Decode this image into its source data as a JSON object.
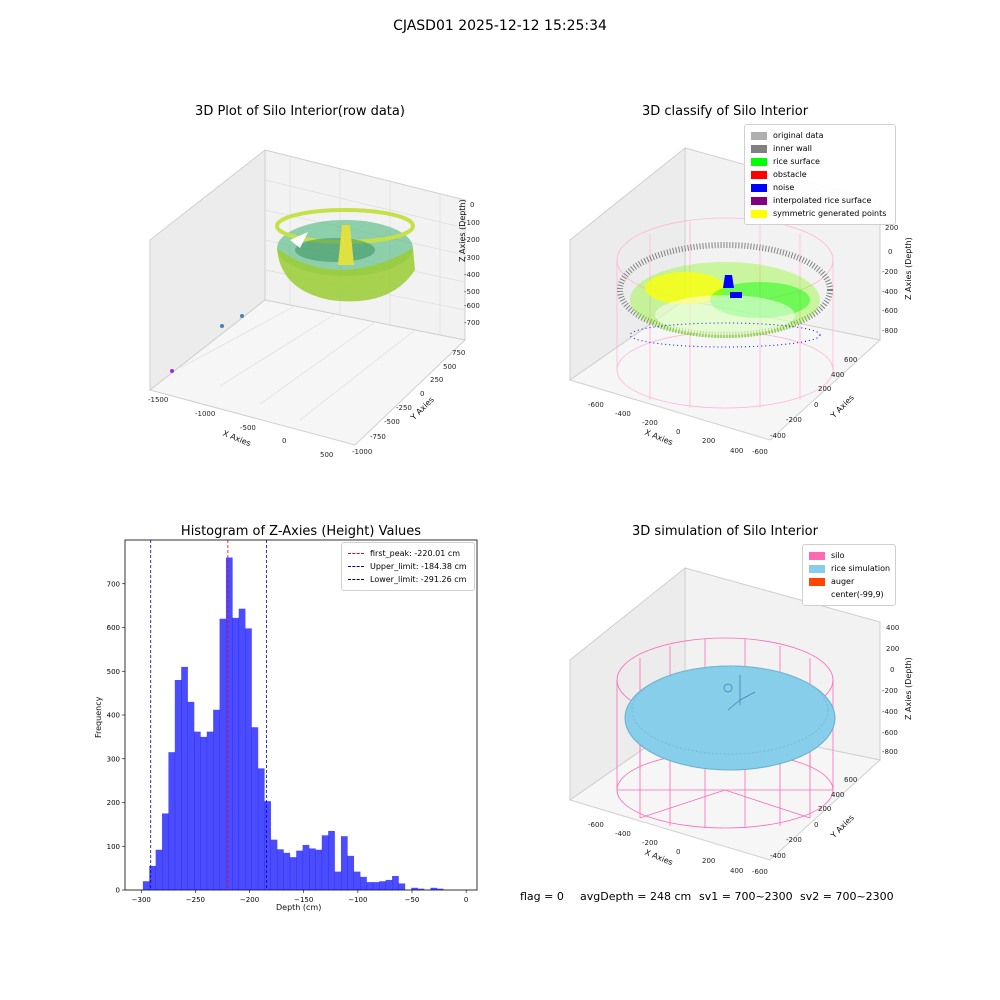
{
  "suptitle": "CJASD01 2025-12-12 15:25:34",
  "panels": {
    "raw": {
      "title": "3D Plot of Silo Interior(row data)",
      "xlabel": "X Axies",
      "ylabel": "Y Axies",
      "zlabel": "Z Axies (Depth)",
      "xticks": [
        "-1500",
        "-1000",
        "-500",
        "0",
        "500"
      ],
      "yticks": [
        "750",
        "500",
        "250",
        "0",
        "-250",
        "-500",
        "-750",
        "-1000"
      ],
      "zticks": [
        "0",
        "-100",
        "-200",
        "-300",
        "-400",
        "-500",
        "-600",
        "-700"
      ]
    },
    "classify": {
      "title": "3D classify of Silo Interior",
      "xlabel": "X Axies",
      "ylabel": "Y Axies",
      "zlabel": "Z Axies (Depth)",
      "xticks": [
        "-600",
        "-400",
        "-200",
        "0",
        "200",
        "400"
      ],
      "yticks": [
        "600",
        "400",
        "200",
        "0",
        "-200",
        "-400",
        "-600"
      ],
      "zticks": [
        "200",
        "0",
        "-200",
        "-400",
        "-600",
        "-800"
      ],
      "legend": [
        {
          "label": "original data",
          "color": "#b0b0b0"
        },
        {
          "label": "inner wall",
          "color": "#808080"
        },
        {
          "label": "rice surface",
          "color": "#00ff00"
        },
        {
          "label": "obstacle",
          "color": "#ff0000"
        },
        {
          "label": "noise",
          "color": "#0000ff"
        },
        {
          "label": "interpolated rice surface",
          "color": "#800080"
        },
        {
          "label": "symmetric generated points",
          "color": "#ffff00"
        }
      ]
    },
    "simulation": {
      "title": "3D simulation of Silo Interior",
      "xlabel": "X Axies",
      "ylabel": "Y Axies",
      "zlabel": "Z Axies (Depth)",
      "xticks": [
        "-600",
        "-400",
        "-200",
        "0",
        "200",
        "400"
      ],
      "yticks": [
        "600",
        "400",
        "200",
        "0",
        "-200",
        "-400",
        "-600"
      ],
      "zticks": [
        "400",
        "200",
        "0",
        "-200",
        "-400",
        "-600",
        "-800"
      ],
      "legend": [
        {
          "label": "silo",
          "color": "#ff69b4"
        },
        {
          "label": "rice simulation",
          "color": "#87ceeb"
        },
        {
          "label": "auger",
          "color": "#ff4500"
        },
        {
          "label": "center(-99,9)",
          "color": ""
        }
      ]
    }
  },
  "chart_data": {
    "type": "bar",
    "title": "Histogram of Z-Axies (Height) Values",
    "xlabel": "Depth (cm)",
    "ylabel": "Frequency",
    "xlim": [
      -315,
      10
    ],
    "ylim": [
      0,
      800
    ],
    "xticks": [
      -300,
      -250,
      -200,
      -150,
      -100,
      -50,
      0
    ],
    "yticks": [
      0,
      100,
      200,
      300,
      400,
      500,
      600,
      700
    ],
    "bin_width": 5.9,
    "bin_start": -298.5,
    "bar_color": "#0000ff",
    "counts": [
      20,
      55,
      92,
      175,
      315,
      480,
      510,
      430,
      362,
      350,
      362,
      412,
      620,
      760,
      622,
      643,
      598,
      372,
      278,
      203,
      115,
      93,
      85,
      75,
      90,
      103,
      95,
      92,
      125,
      135,
      42,
      123,
      78,
      42,
      30,
      18,
      18,
      20,
      23,
      32,
      15,
      0,
      5,
      3,
      0,
      5,
      3,
      0
    ],
    "vlines": [
      {
        "label": "first_peak: -220.01 cm",
        "x": -220.01,
        "color": "#ff0000"
      },
      {
        "label": "Upper_limit: -184.38 cm",
        "x": -184.38,
        "color": "#0000aa"
      },
      {
        "label": "Lower_limit: -291.26 cm",
        "x": -291.26,
        "color": "#0000aa"
      }
    ],
    "legend_position": "upper-right"
  },
  "footer": {
    "flag": "flag = 0",
    "avg": "avgDepth = 248 cm",
    "sv1": "sv1 = 700~2300",
    "sv2": "sv2 = 700~2300"
  }
}
